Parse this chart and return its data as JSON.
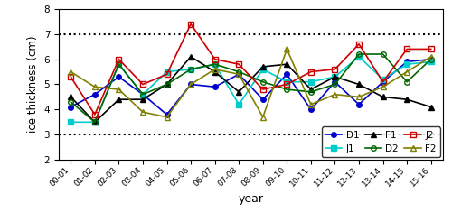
{
  "years": [
    "00-01",
    "01-02",
    "02-03",
    "03-04",
    "04-05",
    "05-06",
    "06-07",
    "07-08",
    "08-09",
    "09-10",
    "10-11",
    "11-12",
    "12-13",
    "13-14",
    "14-15",
    "15-16"
  ],
  "D1": [
    4.1,
    4.6,
    5.3,
    4.6,
    3.8,
    5.0,
    4.9,
    5.4,
    4.4,
    5.4,
    4.0,
    5.1,
    4.2,
    5.1,
    5.9,
    6.0
  ],
  "D2": [
    4.3,
    3.5,
    5.8,
    4.6,
    5.0,
    5.6,
    5.8,
    5.5,
    5.1,
    4.8,
    4.7,
    5.0,
    6.2,
    6.2,
    5.1,
    6.0
  ],
  "J1": [
    3.5,
    3.5,
    5.8,
    4.6,
    5.5,
    5.6,
    5.8,
    4.2,
    5.6,
    5.1,
    5.1,
    5.3,
    6.1,
    5.2,
    5.8,
    5.9
  ],
  "J2": [
    5.3,
    3.8,
    6.0,
    5.0,
    5.4,
    7.4,
    6.0,
    5.8,
    4.8,
    5.0,
    5.5,
    5.6,
    6.6,
    5.1,
    6.4,
    6.4
  ],
  "F1": [
    4.5,
    3.5,
    4.4,
    4.4,
    5.0,
    6.1,
    5.5,
    4.7,
    5.7,
    5.8,
    4.8,
    5.3,
    5.0,
    4.5,
    4.4,
    4.1
  ],
  "F2": [
    5.5,
    4.9,
    4.8,
    3.9,
    3.7,
    5.0,
    5.6,
    5.4,
    3.7,
    6.4,
    4.2,
    4.6,
    4.5,
    4.9,
    5.5,
    6.1
  ],
  "D1_color": "#0000cc",
  "D2_color": "#006600",
  "J1_color": "#00cccc",
  "J2_color": "#cc0000",
  "F1_color": "#000000",
  "F2_color": "#808000",
  "hline_y": [
    3.0,
    7.0
  ],
  "ylim": [
    2,
    8
  ],
  "yticks": [
    2,
    3,
    4,
    5,
    6,
    7,
    8
  ],
  "xlabel": "year",
  "ylabel": "ice thickness (cm)",
  "figsize": [
    5.0,
    2.46
  ],
  "dpi": 100
}
